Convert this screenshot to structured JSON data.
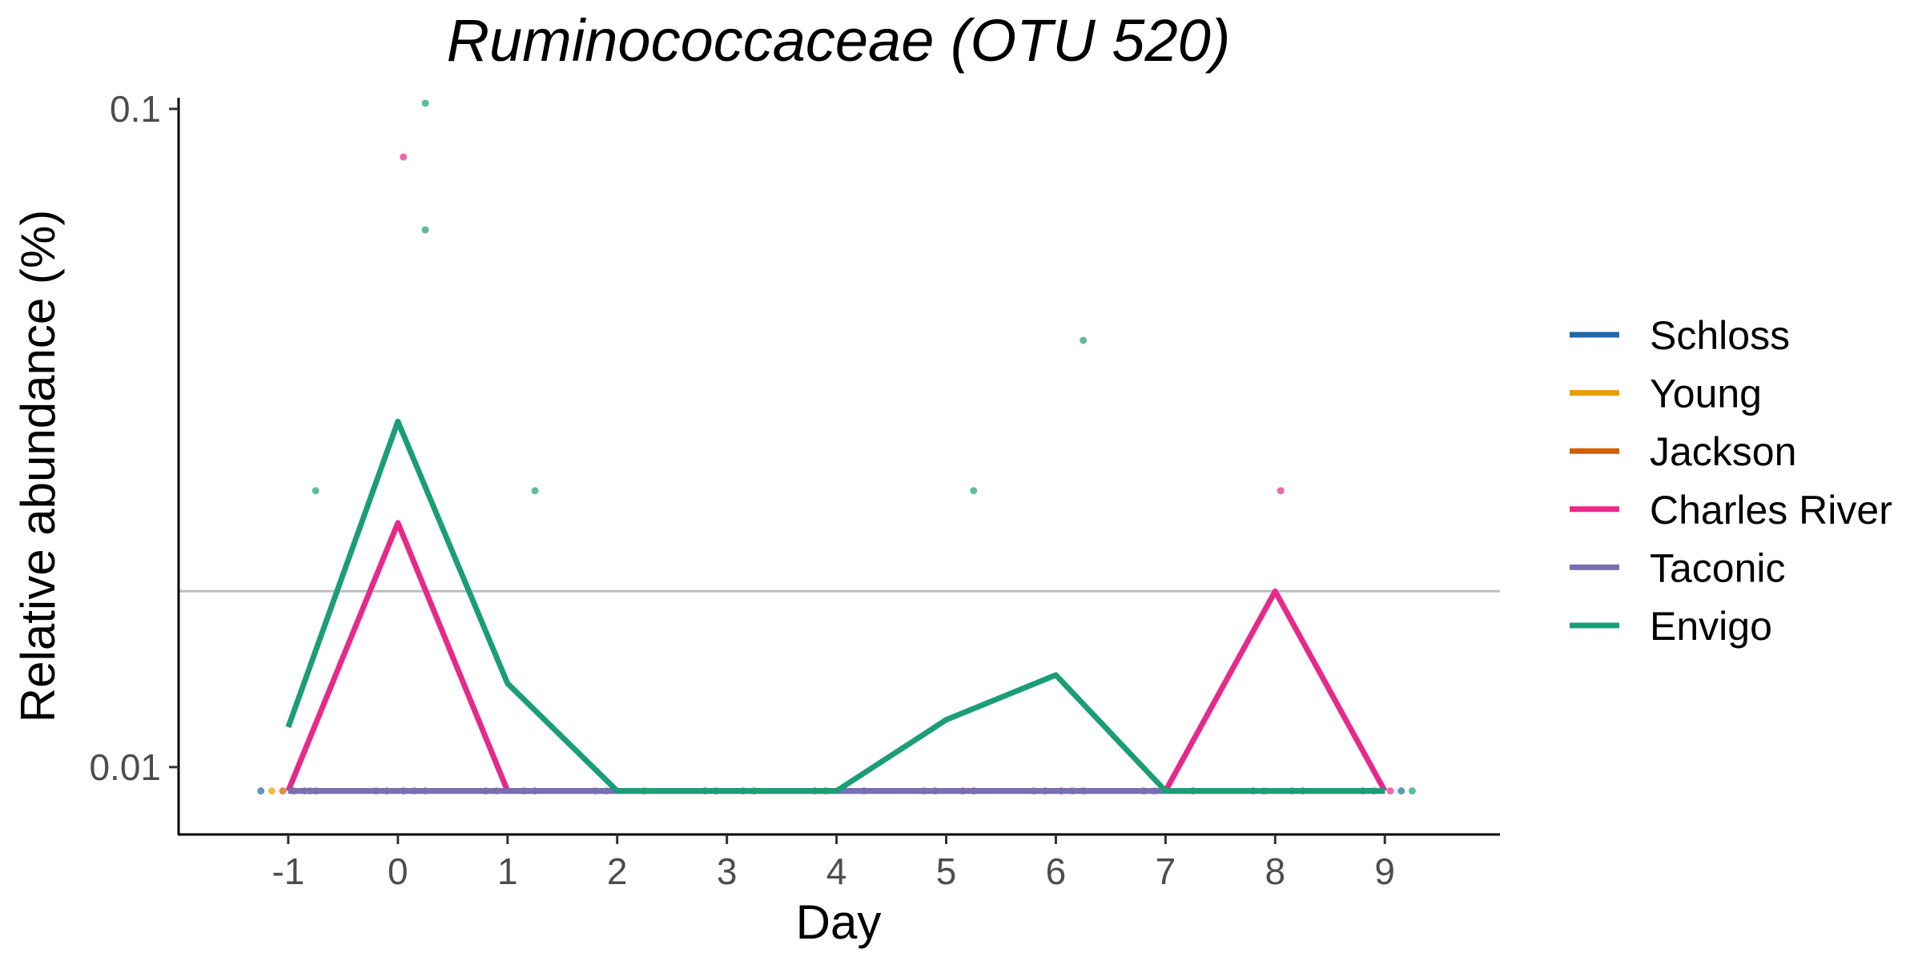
{
  "chart_data": {
    "type": "line",
    "title": "Ruminococcaceae (OTU 520)",
    "xlabel": "Day",
    "ylabel": "Relative abundance (%)",
    "x_ticks": [
      -1,
      0,
      1,
      2,
      3,
      4,
      5,
      6,
      7,
      8,
      9
    ],
    "x_tick_labels": [
      "-1",
      "0",
      "1",
      "2",
      "3",
      "4",
      "5",
      "6",
      "7",
      "8",
      "9"
    ],
    "xlim": [
      -2.0,
      10.05
    ],
    "y_scale": "log10",
    "ylim": [
      0.0079,
      0.104
    ],
    "y_ticks": [
      0.1,
      0.01
    ],
    "y_tick_labels": [
      "0.1",
      "0.01"
    ],
    "detection_limit": 0.0185,
    "floor_value": 0.0092,
    "legend": [
      "Schloss",
      "Young",
      "Jackson",
      "Charles River",
      "Taconic",
      "Envigo"
    ],
    "series": [
      {
        "name": "Schloss",
        "color": "#2166ac",
        "offset": -0.25,
        "x": [
          -1,
          0,
          1,
          2,
          3,
          4,
          5,
          6,
          7,
          8,
          9
        ],
        "y": [
          0.0092,
          0.0092,
          0.0092,
          0.0092,
          0.0092,
          0.0092,
          0.0092,
          0.0092,
          0.0092,
          0.0092,
          0.0092
        ]
      },
      {
        "name": "Young",
        "color": "#e69f00",
        "offset": -0.15,
        "x": [
          -1,
          0,
          1,
          2,
          3,
          4,
          5,
          6,
          7,
          8,
          9
        ],
        "y": [
          0.0092,
          0.0092,
          0.0092,
          0.0092,
          0.0092,
          0.0092,
          0.0092,
          0.0092,
          0.0092,
          0.0092,
          0.0092
        ]
      },
      {
        "name": "Jackson",
        "color": "#d55e00",
        "offset": -0.05,
        "x": [
          -1,
          0,
          1,
          2,
          3,
          4,
          5,
          6,
          7,
          8,
          9
        ],
        "y": [
          0.0092,
          0.0092,
          0.0092,
          0.0092,
          0.0092,
          0.0092,
          0.0092,
          0.0092,
          0.0092,
          0.0092,
          0.0092
        ]
      },
      {
        "name": "Charles River",
        "color": "#e7298a",
        "offset": 0.05,
        "x": [
          -1,
          0,
          1,
          2,
          3,
          4,
          5,
          6,
          7,
          8,
          9
        ],
        "y": [
          0.0092,
          0.0235,
          0.0092,
          0.0092,
          0.0092,
          0.0092,
          0.0092,
          0.0092,
          0.0092,
          0.0185,
          0.0092
        ]
      },
      {
        "name": "Taconic",
        "color": "#7570b3",
        "offset": 0.15,
        "x": [
          -1,
          0,
          1,
          2,
          3,
          4,
          5,
          6,
          7,
          8,
          9
        ],
        "y": [
          0.0092,
          0.0092,
          0.0092,
          0.0092,
          0.0092,
          0.0092,
          0.0092,
          0.0092,
          0.0092,
          0.0092,
          0.0092
        ]
      },
      {
        "name": "Envigo",
        "color": "#1b9e77",
        "offset": 0.25,
        "x": [
          -1,
          0,
          1,
          2,
          3,
          4,
          5,
          6,
          7,
          8,
          9
        ],
        "y": [
          0.0115,
          0.0335,
          0.0134,
          0.0092,
          0.0092,
          0.0092,
          0.0118,
          0.0138,
          0.0092,
          0.0092,
          0.0092
        ]
      }
    ],
    "points": [
      {
        "series": "Schloss",
        "x": -1.25,
        "y": 0.0092
      },
      {
        "series": "Young",
        "x": -1.15,
        "y": 0.0092
      },
      {
        "series": "Jackson",
        "x": -1.05,
        "y": 0.0092
      },
      {
        "series": "Charles River",
        "x": -0.95,
        "y": 0.0092
      },
      {
        "series": "Taconic",
        "x": -0.85,
        "y": 0.0092
      },
      {
        "series": "Taconic",
        "x": -0.8,
        "y": 0.0092
      },
      {
        "series": "Envigo",
        "x": -0.75,
        "y": 0.0092
      },
      {
        "series": "Envigo",
        "x": -0.75,
        "y": 0.0263
      },
      {
        "series": "Taconic",
        "x": -0.2,
        "y": 0.0092
      },
      {
        "series": "Taconic",
        "x": -0.1,
        "y": 0.0092
      },
      {
        "series": "Charles River",
        "x": 0.05,
        "y": 0.0092
      },
      {
        "series": "Charles River",
        "x": 0.05,
        "y": 0.0845
      },
      {
        "series": "Taconic",
        "x": 0.15,
        "y": 0.0092
      },
      {
        "series": "Envigo",
        "x": 0.25,
        "y": 0.0092
      },
      {
        "series": "Envigo",
        "x": 0.25,
        "y": 0.102
      },
      {
        "series": "Envigo",
        "x": 0.25,
        "y": 0.0655
      },
      {
        "series": "Taconic",
        "x": 0.8,
        "y": 0.0092
      },
      {
        "series": "Taconic",
        "x": 0.9,
        "y": 0.0092
      },
      {
        "series": "Taconic",
        "x": 1.15,
        "y": 0.0092
      },
      {
        "series": "Envigo",
        "x": 1.25,
        "y": 0.0092
      },
      {
        "series": "Envigo",
        "x": 1.25,
        "y": 0.0263
      },
      {
        "series": "Taconic",
        "x": 1.8,
        "y": 0.0092
      },
      {
        "series": "Taconic",
        "x": 1.9,
        "y": 0.0092
      },
      {
        "series": "Envigo",
        "x": 2.25,
        "y": 0.0092
      },
      {
        "series": "Taconic",
        "x": 2.8,
        "y": 0.0092
      },
      {
        "series": "Taconic",
        "x": 2.9,
        "y": 0.0092
      },
      {
        "series": "Taconic",
        "x": 3.15,
        "y": 0.0092
      },
      {
        "series": "Envigo",
        "x": 3.25,
        "y": 0.0092
      },
      {
        "series": "Taconic",
        "x": 3.8,
        "y": 0.0092
      },
      {
        "series": "Taconic",
        "x": 3.9,
        "y": 0.0092
      },
      {
        "series": "Envigo",
        "x": 4.25,
        "y": 0.0092
      },
      {
        "series": "Taconic",
        "x": 4.8,
        "y": 0.0092
      },
      {
        "series": "Taconic",
        "x": 4.9,
        "y": 0.0092
      },
      {
        "series": "Taconic",
        "x": 5.15,
        "y": 0.0092
      },
      {
        "series": "Envigo",
        "x": 5.25,
        "y": 0.0092
      },
      {
        "series": "Envigo",
        "x": 5.25,
        "y": 0.0263
      },
      {
        "series": "Taconic",
        "x": 5.8,
        "y": 0.0092
      },
      {
        "series": "Taconic",
        "x": 5.9,
        "y": 0.0092
      },
      {
        "series": "Charles River",
        "x": 6.05,
        "y": 0.0092
      },
      {
        "series": "Taconic",
        "x": 6.15,
        "y": 0.0092
      },
      {
        "series": "Envigo",
        "x": 6.25,
        "y": 0.0092
      },
      {
        "series": "Envigo",
        "x": 6.25,
        "y": 0.0445
      },
      {
        "series": "Taconic",
        "x": 6.8,
        "y": 0.0092
      },
      {
        "series": "Taconic",
        "x": 6.9,
        "y": 0.0092
      },
      {
        "series": "Envigo",
        "x": 7.25,
        "y": 0.0092
      },
      {
        "series": "Taconic",
        "x": 7.8,
        "y": 0.0092
      },
      {
        "series": "Taconic",
        "x": 7.9,
        "y": 0.0092
      },
      {
        "series": "Charles River",
        "x": 8.05,
        "y": 0.0263
      },
      {
        "series": "Taconic",
        "x": 8.15,
        "y": 0.0092
      },
      {
        "series": "Envigo",
        "x": 8.25,
        "y": 0.0092
      },
      {
        "series": "Taconic",
        "x": 8.8,
        "y": 0.0092
      },
      {
        "series": "Taconic",
        "x": 8.9,
        "y": 0.0092
      },
      {
        "series": "Charles River",
        "x": 9.05,
        "y": 0.0092
      },
      {
        "series": "Schloss",
        "x": 9.15,
        "y": 0.0092
      },
      {
        "series": "Envigo",
        "x": 9.25,
        "y": 0.0092
      }
    ]
  }
}
